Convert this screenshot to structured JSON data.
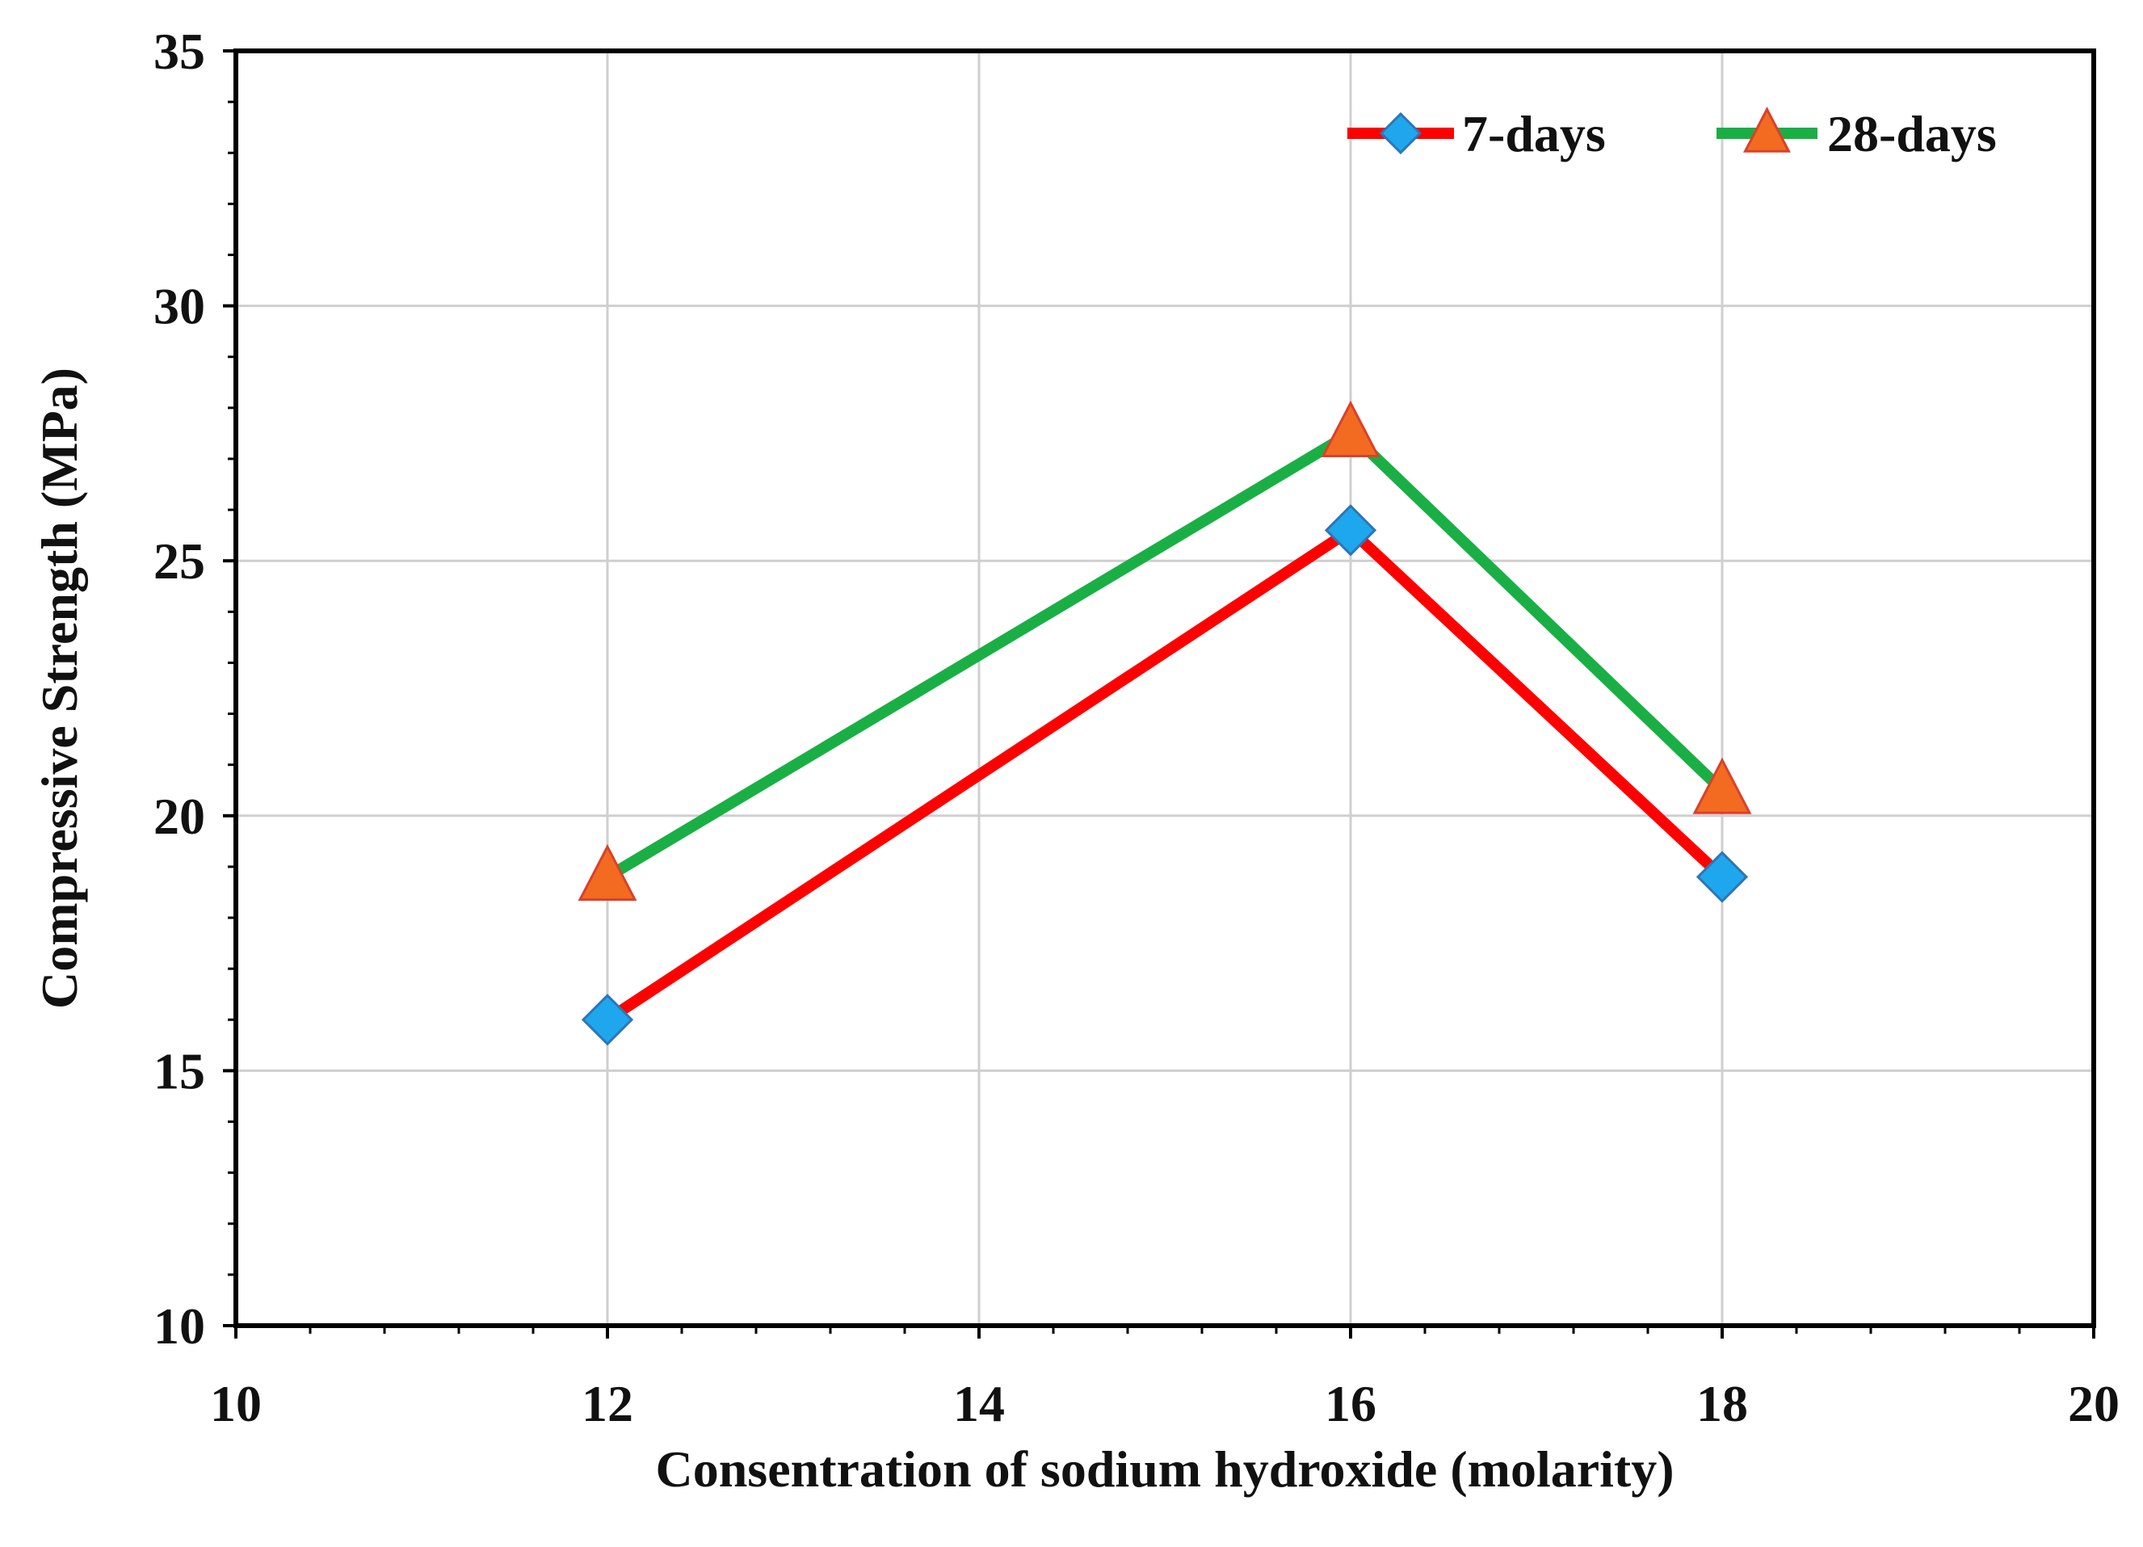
{
  "chart_data": {
    "type": "line",
    "title": "",
    "xlabel": "Consentration of sodium hydroxide (molarity)",
    "ylabel": "Compressive Strength (MPa)",
    "xlim": [
      10,
      20
    ],
    "ylim": [
      10,
      35
    ],
    "xticks": [
      10,
      12,
      14,
      16,
      18,
      20
    ],
    "yticks": [
      10,
      15,
      20,
      25,
      30,
      35
    ],
    "x_minor_step": 0.4,
    "y_minor_step": 1,
    "grid": true,
    "legend_position": "top-right",
    "x": [
      12,
      16,
      18
    ],
    "series": [
      {
        "name": "7-days",
        "values": [
          16.0,
          25.6,
          18.8
        ],
        "line_color": "#ff0000",
        "marker": "diamond",
        "marker_color": "#1ea7ec",
        "marker_edge": "#2e75b6"
      },
      {
        "name": "28-days",
        "values": [
          18.8,
          27.5,
          20.5
        ],
        "line_color": "#1aaf45",
        "marker": "triangle",
        "marker_color": "#f26b21",
        "marker_edge": "#d9412b"
      }
    ]
  }
}
